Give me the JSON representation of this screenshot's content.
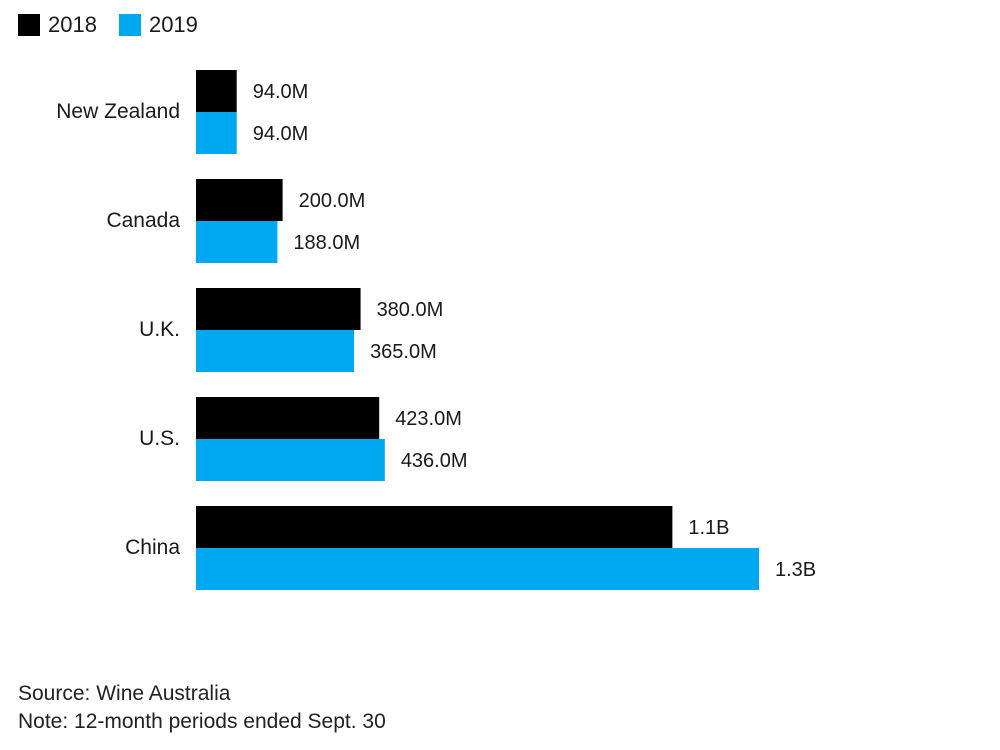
{
  "legend": [
    {
      "label": "2018",
      "color": "#000000"
    },
    {
      "label": "2019",
      "color": "#00a8f0"
    }
  ],
  "chart_data": {
    "type": "bar",
    "orientation": "horizontal",
    "categories": [
      "New Zealand",
      "Canada",
      "U.K.",
      "U.S.",
      "China"
    ],
    "series": [
      {
        "name": "2018",
        "color": "#000000",
        "values": [
          94000000,
          200000000,
          380000000,
          423000000,
          1100000000
        ],
        "labels": [
          "94.0M",
          "200.0M",
          "380.0M",
          "423.0M",
          "1.1B"
        ]
      },
      {
        "name": "2019",
        "color": "#00a8f0",
        "values": [
          94000000,
          188000000,
          365000000,
          436000000,
          1300000000
        ],
        "labels": [
          "94.0M",
          "188.0M",
          "365.0M",
          "436.0M",
          "1.3B"
        ]
      }
    ],
    "title": "",
    "xlabel": "",
    "ylabel": "",
    "grid": false,
    "legend_position": "top-left"
  },
  "footer": {
    "source": "Source: Wine Australia",
    "note": "Note: 12-month periods ended Sept. 30"
  }
}
